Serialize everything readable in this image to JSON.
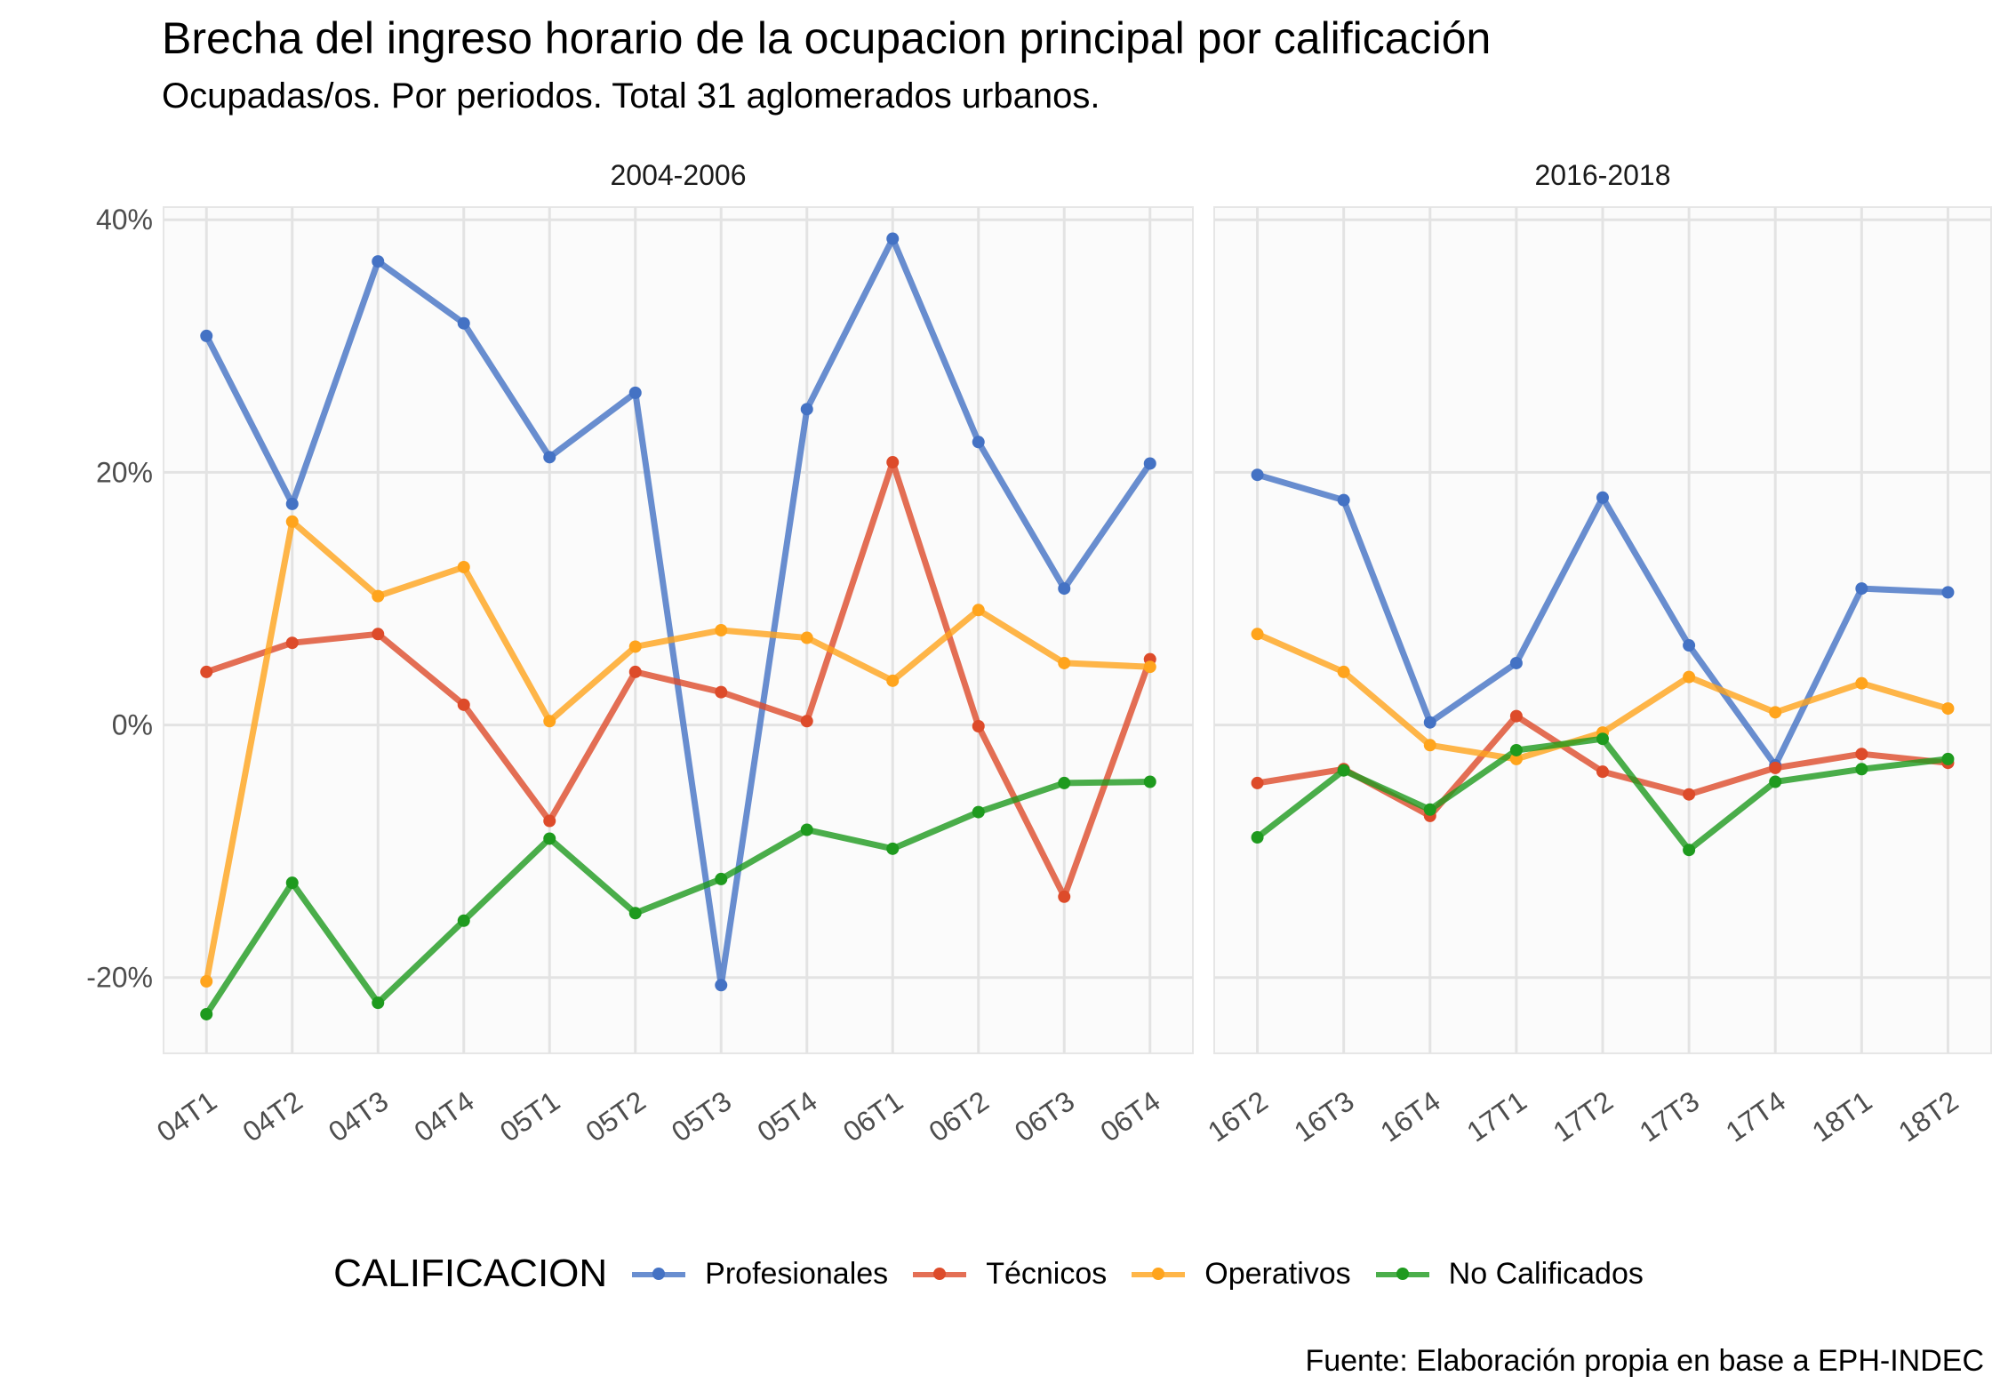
{
  "title": "Brecha del ingreso horario de la ocupacion principal por calificación",
  "subtitle": "Ocupadas/os. Por periodos. Total 31 aglomerados urbanos.",
  "caption": "Fuente: Elaboración propia en base a EPH-INDEC",
  "legend": {
    "title": "CALIFICACION",
    "position": "bottom",
    "items": [
      {
        "label": "Profesionales",
        "color": "#4472c4"
      },
      {
        "label": "Técnicos",
        "color": "#dd4b2a"
      },
      {
        "label": "Operativos",
        "color": "#ffa41c"
      },
      {
        "label": "No Calificados",
        "color": "#1e9a1e"
      }
    ]
  },
  "chart_data": {
    "type": "line",
    "ylim": [
      -0.26,
      0.41
    ],
    "y_ticks": [
      -0.2,
      0,
      0.2,
      0.4
    ],
    "y_tick_labels": [
      "-20%",
      "0%",
      "20%",
      "40%"
    ],
    "grid": true,
    "panels": [
      {
        "label": "2004-2006",
        "categories": [
          "04T1",
          "04T2",
          "04T3",
          "04T4",
          "05T1",
          "05T2",
          "05T3",
          "05T4",
          "06T1",
          "06T2",
          "06T3",
          "06T4"
        ],
        "series": [
          {
            "name": "Profesionales",
            "values": [
              0.308,
              0.175,
              0.367,
              0.318,
              0.212,
              0.263,
              -0.206,
              0.25,
              0.385,
              0.224,
              0.108,
              0.207
            ]
          },
          {
            "name": "Técnicos",
            "values": [
              0.042,
              0.065,
              0.072,
              0.016,
              -0.076,
              0.042,
              0.026,
              0.003,
              0.208,
              -0.001,
              -0.136,
              0.052
            ]
          },
          {
            "name": "Operativos",
            "values": [
              -0.203,
              0.161,
              0.102,
              0.125,
              0.003,
              0.062,
              0.075,
              0.069,
              0.035,
              0.091,
              0.049,
              0.046
            ]
          },
          {
            "name": "No Calificados",
            "values": [
              -0.229,
              -0.125,
              -0.22,
              -0.155,
              -0.09,
              -0.149,
              -0.122,
              -0.083,
              -0.098,
              -0.069,
              -0.046,
              -0.045
            ]
          }
        ]
      },
      {
        "label": "2016-2018",
        "categories": [
          "16T2",
          "16T3",
          "16T4",
          "17T1",
          "17T2",
          "17T3",
          "17T4",
          "18T1",
          "18T2"
        ],
        "series": [
          {
            "name": "Profesionales",
            "values": [
              0.198,
              0.178,
              0.002,
              0.049,
              0.18,
              0.063,
              -0.032,
              0.108,
              0.105
            ]
          },
          {
            "name": "Técnicos",
            "values": [
              -0.046,
              -0.035,
              -0.072,
              0.007,
              -0.037,
              -0.055,
              -0.034,
              -0.023,
              -0.03
            ]
          },
          {
            "name": "Operativos",
            "values": [
              0.072,
              0.042,
              -0.016,
              -0.027,
              -0.006,
              0.038,
              0.01,
              0.033,
              0.013
            ]
          },
          {
            "name": "No Calificados",
            "values": [
              -0.089,
              -0.036,
              -0.067,
              -0.02,
              -0.011,
              -0.099,
              -0.045,
              -0.035,
              -0.027
            ]
          }
        ]
      }
    ]
  }
}
